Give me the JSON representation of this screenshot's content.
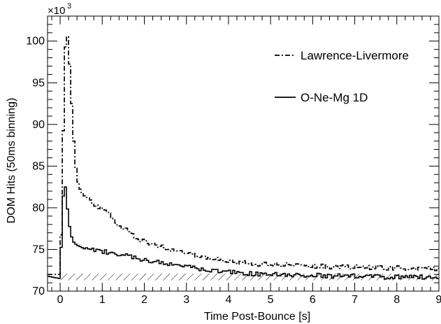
{
  "chart_data": {
    "type": "line",
    "xlabel": "Time Post-Bounce [s]",
    "ylabel": "DOM Hits (50ms binning)",
    "y_multiplier": "×10",
    "y_multiplier_exp": "3",
    "xlim": [
      -0.3,
      9.0
    ],
    "ylim": [
      70,
      103
    ],
    "xticks": [
      0,
      1,
      2,
      3,
      4,
      5,
      6,
      7,
      8,
      9
    ],
    "yticks": [
      70,
      75,
      80,
      85,
      90,
      95,
      100
    ],
    "legend_position": "top-right",
    "series": [
      {
        "name": "Lawrence-Livermore",
        "style": "dash-dot",
        "x": [
          -0.3,
          0.0,
          0.05,
          0.1,
          0.15,
          0.2,
          0.25,
          0.3,
          0.35,
          0.4,
          0.5,
          0.6,
          0.7,
          0.8,
          1.0,
          1.2,
          1.4,
          1.6,
          1.8,
          2.0,
          2.2,
          2.4,
          2.6,
          2.8,
          3.0,
          3.5,
          4.0,
          4.5,
          5.0,
          5.5,
          6.0,
          6.5,
          7.0,
          7.5,
          8.0,
          8.5,
          9.0
        ],
        "y": [
          72.0,
          72.0,
          81.5,
          97.0,
          101.6,
          99.5,
          95.0,
          90.0,
          86.0,
          83.5,
          81.8,
          81.3,
          81.0,
          80.5,
          79.8,
          79.0,
          78.0,
          77.2,
          76.5,
          76.0,
          75.6,
          75.3,
          75.0,
          74.8,
          74.5,
          74.0,
          73.6,
          73.3,
          73.2,
          73.1,
          73.0,
          72.9,
          72.9,
          72.8,
          72.8,
          72.7,
          72.7
        ]
      },
      {
        "name": "O-Ne-Mg 1D",
        "style": "solid",
        "x": [
          -0.3,
          0.0,
          0.05,
          0.1,
          0.15,
          0.2,
          0.25,
          0.3,
          0.4,
          0.5,
          0.6,
          0.8,
          1.0,
          1.2,
          1.5,
          2.0,
          2.5,
          3.0,
          3.5,
          4.0,
          4.5,
          5.0,
          5.5,
          6.0,
          6.5,
          7.0,
          7.5,
          8.0,
          8.5,
          9.0
        ],
        "y": [
          71.8,
          71.5,
          79.0,
          83.8,
          81.2,
          78.5,
          77.0,
          76.0,
          75.5,
          75.3,
          75.0,
          74.9,
          74.8,
          74.6,
          74.3,
          73.8,
          73.3,
          72.9,
          72.6,
          72.3,
          72.1,
          72.0,
          71.9,
          71.9,
          71.8,
          71.8,
          71.7,
          71.7,
          71.7,
          71.7
        ]
      }
    ],
    "background_band": {
      "ymin": 71.3,
      "ymax": 72.1,
      "pattern": "hatched"
    }
  }
}
